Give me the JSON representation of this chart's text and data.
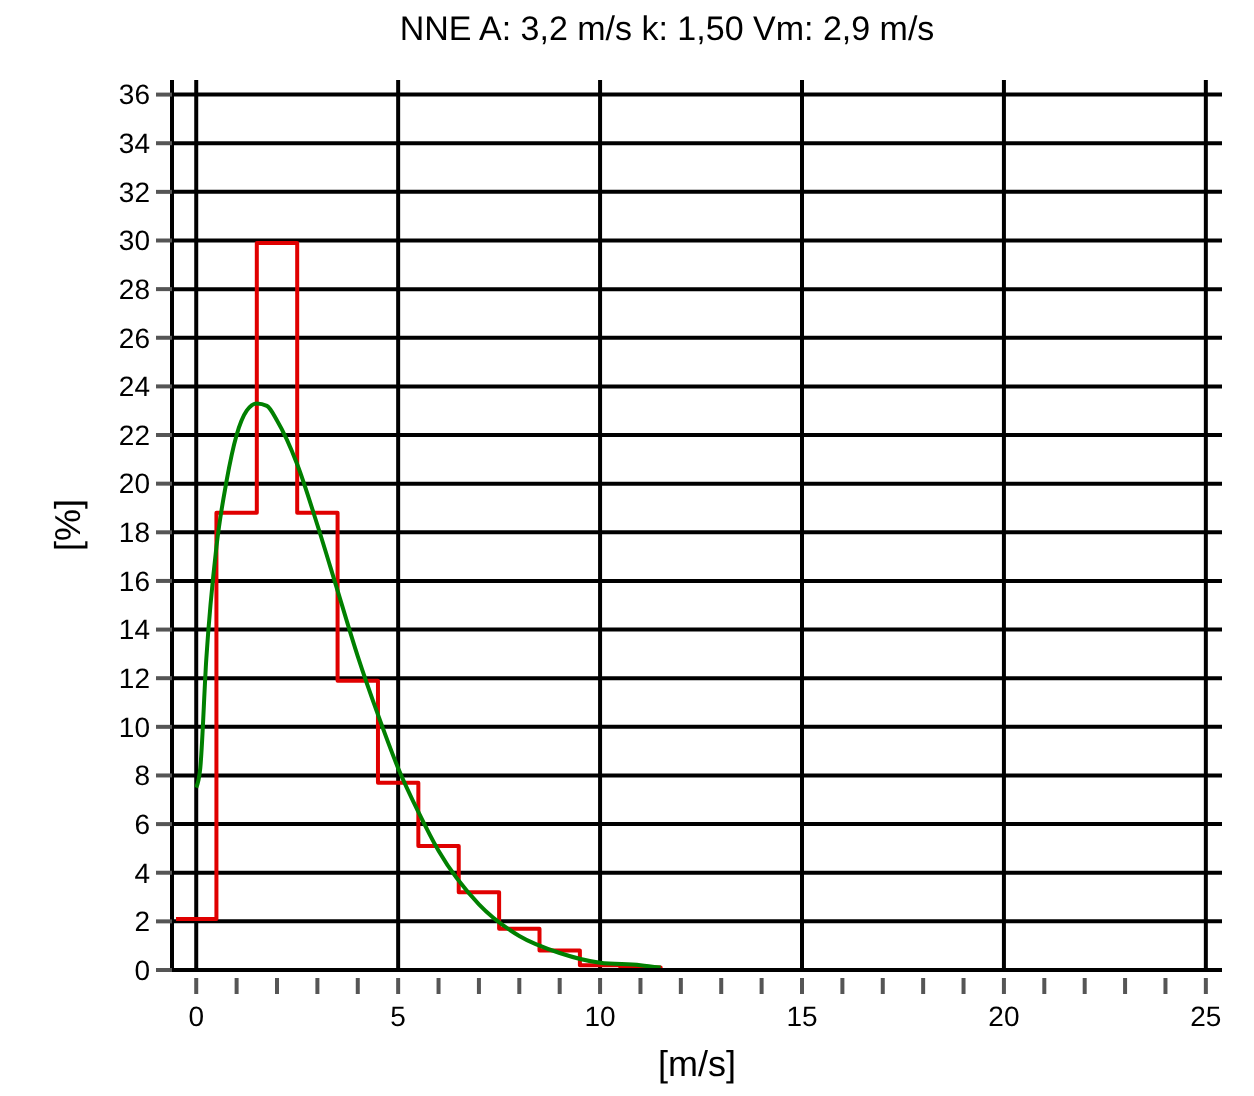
{
  "chart_data": {
    "type": "step",
    "title": "NNE A: 3,2 m/s k: 1,50 Vm: 2,9 m/s",
    "xlabel": "[m/s]",
    "ylabel": "[%]",
    "xlim": [
      -0.6,
      25.4
    ],
    "ylim": [
      0,
      36.6
    ],
    "xticks": [
      0,
      {
        "value": 1,
        "label": null
      },
      {
        "value": 2,
        "label": null
      },
      {
        "value": 3,
        "label": null
      },
      {
        "value": 4,
        "label": null
      },
      5,
      {
        "value": 6,
        "label": null
      },
      {
        "value": 7,
        "label": null
      },
      {
        "value": 8,
        "label": null
      },
      {
        "value": 9,
        "label": null
      },
      10,
      {
        "value": 11,
        "label": null
      },
      {
        "value": 12,
        "label": null
      },
      {
        "value": 13,
        "label": null
      },
      {
        "value": 14,
        "label": null
      },
      15,
      {
        "value": 16,
        "label": null
      },
      {
        "value": 17,
        "label": null
      },
      {
        "value": 18,
        "label": null
      },
      {
        "value": 19,
        "label": null
      },
      20,
      {
        "value": 21,
        "label": null
      },
      {
        "value": 22,
        "label": null
      },
      {
        "value": 23,
        "label": null
      },
      {
        "value": 24,
        "label": null
      },
      25
    ],
    "yticks": [
      0,
      2,
      4,
      6,
      8,
      10,
      12,
      14,
      16,
      18,
      20,
      22,
      24,
      26,
      28,
      30,
      32,
      34,
      36
    ],
    "grid": true,
    "series": [
      {
        "color": "#e00000",
        "x": [
          -0.5,
          0.5,
          1.5,
          2.5,
          3.5,
          4.5,
          5.5,
          6.5,
          7.5,
          8.5,
          9.5,
          10.5,
          11.5,
          25
        ],
        "values": [
          2.1,
          18.8,
          29.9,
          18.8,
          11.9,
          7.7,
          5.1,
          3.2,
          1.7,
          0.8,
          0.2,
          0.1,
          0,
          0
        ]
      },
      {
        "type": "line",
        "color": "#008000",
        "x": [
          0,
          0.1,
          0.25,
          0.5,
          0.75,
          1,
          1.25,
          1.5,
          1.75,
          2,
          2.5,
          3,
          3.5,
          4,
          4.5,
          5,
          5.5,
          6,
          7,
          8,
          9,
          10,
          11,
          11.5
        ],
        "values": [
          7.5,
          8.3,
          12.8,
          17.4,
          20.1,
          22,
          23,
          23.3,
          23.2,
          22.6,
          20.8,
          18.3,
          15.6,
          12.9,
          10.5,
          8.3,
          6.5,
          4.9,
          2.7,
          1.4,
          0.7,
          0.3,
          0.2,
          0.1
        ]
      }
    ]
  }
}
